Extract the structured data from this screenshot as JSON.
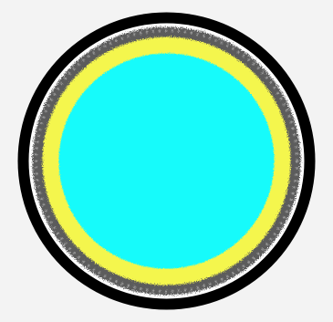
{
  "figure": {
    "shape": "layered-circle-icon",
    "colors": {
      "background": "#f3f3f3",
      "outer_ring": "#000000",
      "white_gap": "#ffffff",
      "gray_ring": "#5b5b5b",
      "yellow_ring": "#f4f64e",
      "center_fill": "#19fbfb"
    }
  }
}
